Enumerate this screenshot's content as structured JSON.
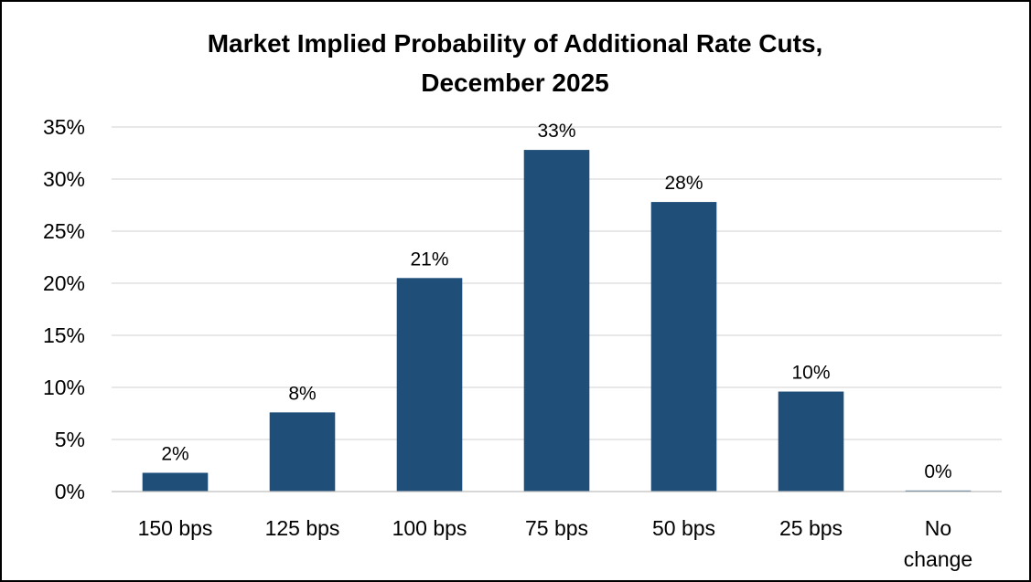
{
  "chart_data": {
    "type": "bar",
    "title_lines": [
      "Market Implied Probability of Additional Rate Cuts,",
      "December 2025"
    ],
    "categories": [
      [
        "150 bps"
      ],
      [
        "125 bps"
      ],
      [
        "100 bps"
      ],
      [
        "75 bps"
      ],
      [
        "50 bps"
      ],
      [
        "25 bps"
      ],
      [
        "No",
        "change"
      ]
    ],
    "values": [
      1.8,
      7.6,
      20.5,
      32.8,
      27.8,
      9.6,
      0.1
    ],
    "data_labels": [
      "2%",
      "8%",
      "21%",
      "33%",
      "28%",
      "10%",
      "0%"
    ],
    "ylim": [
      0,
      35
    ],
    "yticks": [
      0,
      5,
      10,
      15,
      20,
      25,
      30,
      35
    ],
    "ytick_labels": [
      "0%",
      "5%",
      "10%",
      "15%",
      "20%",
      "25%",
      "30%",
      "35%"
    ],
    "bar_color": "#1f4e79",
    "grid": true,
    "legend": "none"
  }
}
